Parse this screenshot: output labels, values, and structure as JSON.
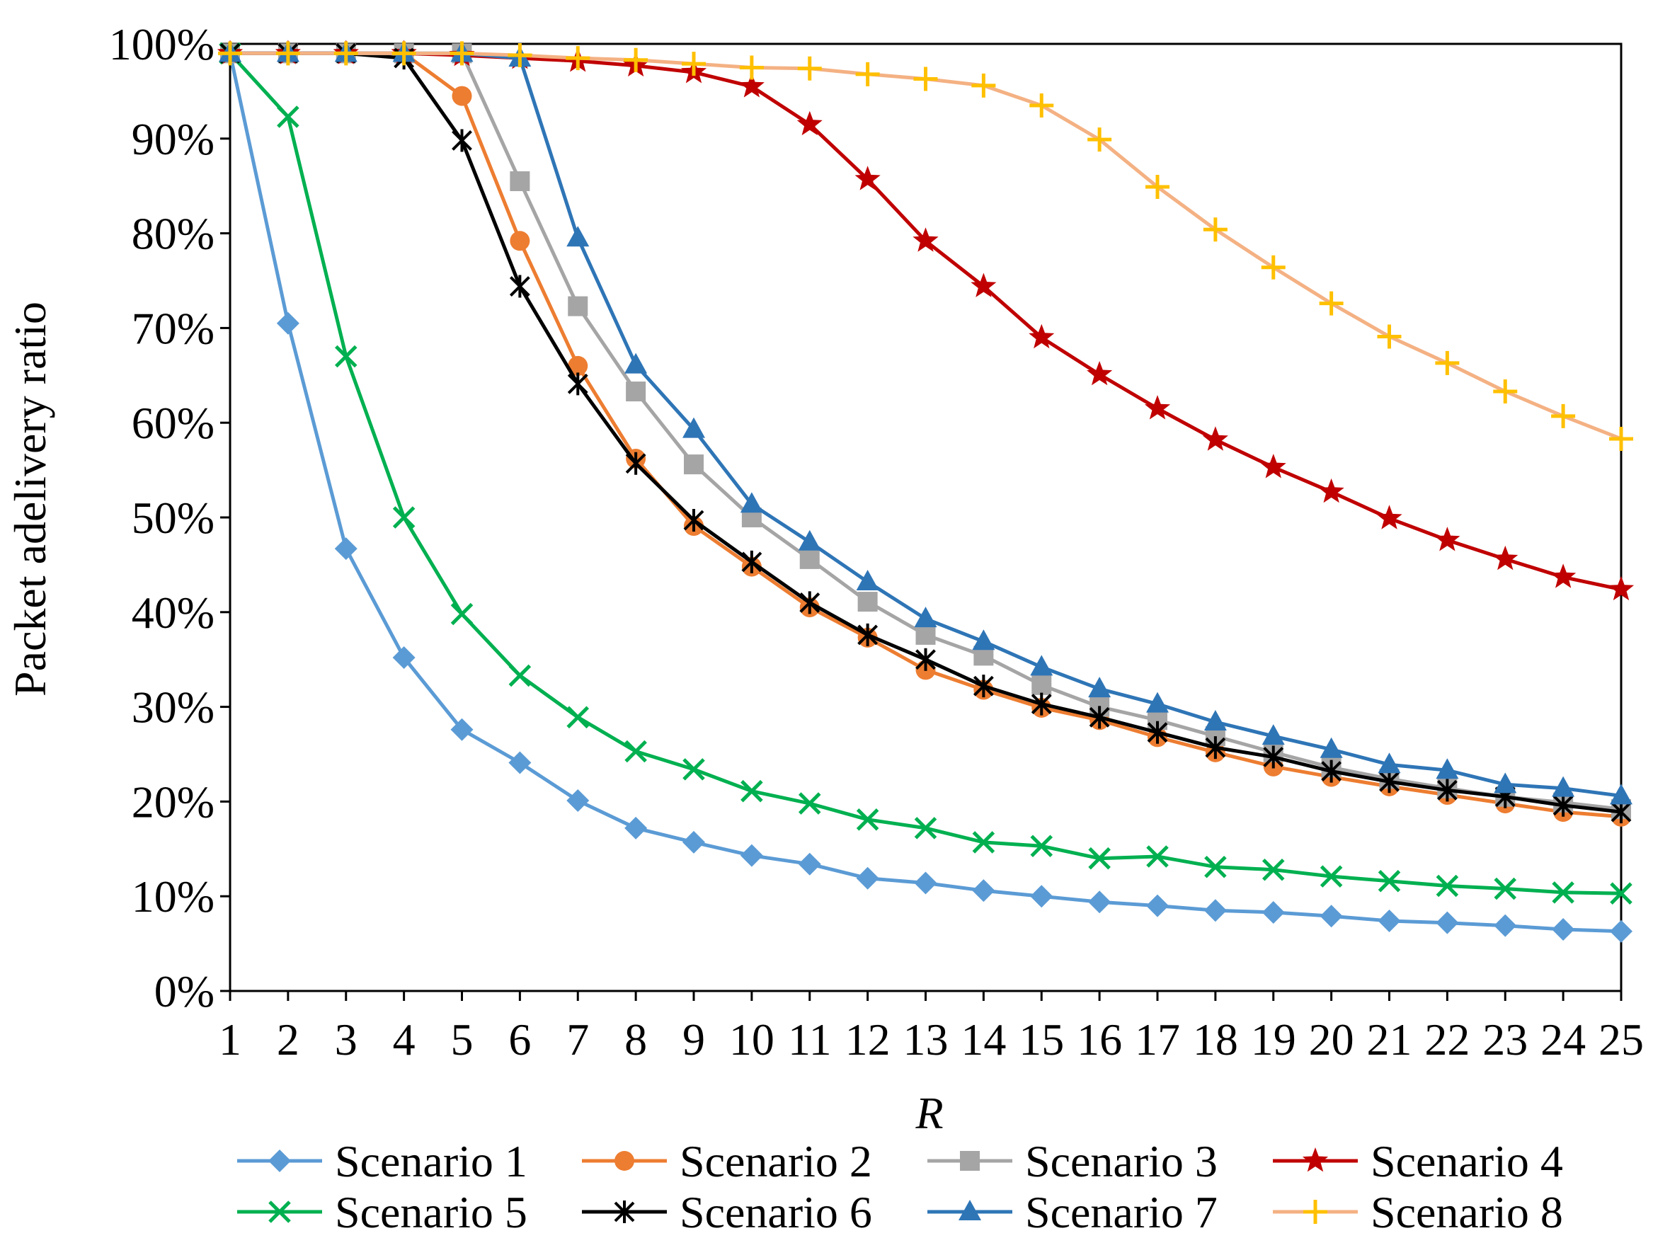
{
  "chart_data": {
    "type": "line",
    "title": "",
    "xlabel": "R",
    "ylabel": "Packet adelivery  ratio",
    "x": [
      1,
      2,
      3,
      4,
      5,
      6,
      7,
      8,
      9,
      10,
      11,
      12,
      13,
      14,
      15,
      16,
      17,
      18,
      19,
      20,
      21,
      22,
      23,
      24,
      25
    ],
    "x_tick_labels": [
      "1",
      "2",
      "3",
      "4",
      "5",
      "6",
      "7",
      "8",
      "9",
      "10",
      "11",
      "12",
      "13",
      "14",
      "15",
      "16",
      "17",
      "18",
      "19",
      "20",
      "21",
      "22",
      "23",
      "24",
      "25"
    ],
    "xlim": [
      1,
      25
    ],
    "ylim": [
      0,
      1
    ],
    "y_ticks": [
      0,
      0.1,
      0.2,
      0.3,
      0.4,
      0.5,
      0.6,
      0.7,
      0.8,
      0.9,
      1.0
    ],
    "y_tick_labels": [
      "0%",
      "10%",
      "20%",
      "30%",
      "40%",
      "50%",
      "60%",
      "70%",
      "80%",
      "90%",
      "100%"
    ],
    "grid": false,
    "legend_position": "bottom",
    "series": [
      {
        "name": "Scenario 1",
        "color": "#5B9BD5",
        "marker": "diamond",
        "values": [
          0.99,
          0.705,
          0.467,
          0.352,
          0.276,
          0.241,
          0.201,
          0.172,
          0.157,
          0.143,
          0.134,
          0.119,
          0.114,
          0.106,
          0.1,
          0.094,
          0.09,
          0.085,
          0.083,
          0.079,
          0.074,
          0.072,
          0.069,
          0.065,
          0.063
        ]
      },
      {
        "name": "Scenario 2",
        "color": "#ED7D31",
        "marker": "circle",
        "values": [
          0.99,
          0.99,
          0.99,
          0.99,
          0.945,
          0.792,
          0.66,
          0.562,
          0.491,
          0.448,
          0.405,
          0.373,
          0.339,
          0.318,
          0.299,
          0.286,
          0.268,
          0.252,
          0.237,
          0.226,
          0.216,
          0.207,
          0.198,
          0.189,
          0.184
        ]
      },
      {
        "name": "Scenario 3",
        "color": "#A5A5A5",
        "marker": "square",
        "values": [
          0.99,
          0.99,
          0.99,
          0.99,
          0.99,
          0.855,
          0.723,
          0.633,
          0.556,
          0.5,
          0.456,
          0.411,
          0.376,
          0.354,
          0.323,
          0.3,
          0.286,
          0.269,
          0.252,
          0.236,
          0.224,
          0.214,
          0.205,
          0.199,
          0.192
        ]
      },
      {
        "name": "Scenario 4",
        "color": "#C00000",
        "marker": "star",
        "values": [
          0.99,
          0.99,
          0.99,
          0.99,
          0.988,
          0.985,
          0.982,
          0.977,
          0.97,
          0.955,
          0.915,
          0.857,
          0.792,
          0.744,
          0.69,
          0.651,
          0.615,
          0.582,
          0.553,
          0.527,
          0.499,
          0.476,
          0.456,
          0.437,
          0.424
        ]
      },
      {
        "name": "Scenario 5",
        "color": "#00B050",
        "marker": "x",
        "values": [
          0.99,
          0.923,
          0.67,
          0.5,
          0.398,
          0.333,
          0.289,
          0.253,
          0.234,
          0.211,
          0.198,
          0.181,
          0.172,
          0.157,
          0.153,
          0.14,
          0.142,
          0.131,
          0.128,
          0.121,
          0.116,
          0.111,
          0.108,
          0.104,
          0.103
        ]
      },
      {
        "name": "Scenario 6",
        "color": "#000000",
        "marker": "asterisk",
        "values": [
          0.99,
          0.99,
          0.99,
          0.985,
          0.898,
          0.744,
          0.641,
          0.557,
          0.497,
          0.453,
          0.41,
          0.376,
          0.35,
          0.322,
          0.303,
          0.289,
          0.273,
          0.257,
          0.247,
          0.232,
          0.221,
          0.212,
          0.205,
          0.196,
          0.189
        ]
      },
      {
        "name": "Scenario 7",
        "color": "#2E75B6",
        "marker": "triangle",
        "values": [
          0.99,
          0.99,
          0.99,
          0.99,
          0.99,
          0.985,
          0.795,
          0.661,
          0.593,
          0.514,
          0.474,
          0.432,
          0.393,
          0.369,
          0.342,
          0.319,
          0.303,
          0.284,
          0.269,
          0.255,
          0.239,
          0.233,
          0.218,
          0.214,
          0.206
        ]
      },
      {
        "name": "Scenario 8",
        "color": "#F4B183",
        "markerColor": "#FFC000",
        "marker": "plus",
        "values": [
          0.99,
          0.99,
          0.99,
          0.99,
          0.99,
          0.988,
          0.985,
          0.983,
          0.979,
          0.975,
          0.974,
          0.968,
          0.963,
          0.956,
          0.935,
          0.899,
          0.849,
          0.804,
          0.764,
          0.726,
          0.691,
          0.663,
          0.633,
          0.607,
          0.583
        ]
      }
    ]
  }
}
